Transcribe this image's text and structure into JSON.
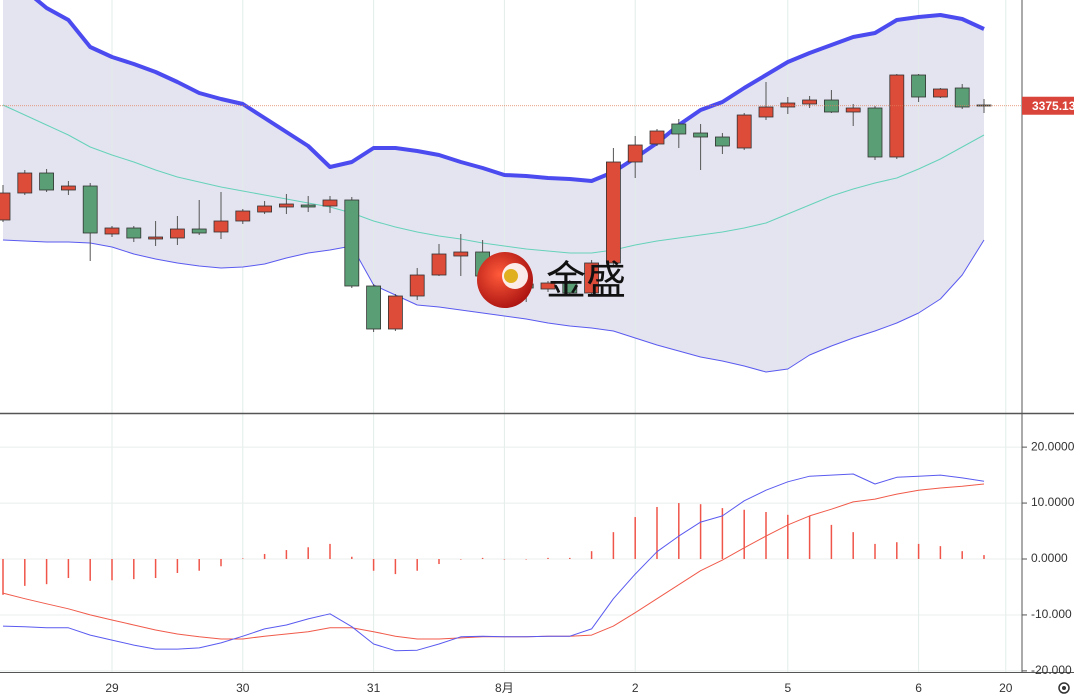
{
  "chart_data": [
    {
      "type": "candlestick",
      "categories": [
        null,
        null,
        null,
        null,
        null,
        "29",
        null,
        null,
        null,
        null,
        null,
        "30",
        null,
        null,
        null,
        null,
        null,
        "31",
        null,
        null,
        null,
        null,
        null,
        "8月",
        null,
        null,
        null,
        null,
        null,
        "2",
        null,
        null,
        null,
        null,
        null,
        null,
        "5",
        null,
        null,
        null,
        null,
        null,
        "6",
        null,
        null,
        null,
        "20"
      ],
      "open": [
        3318,
        3331.5,
        3341.5,
        3333,
        3335,
        3311,
        3314,
        3308.5,
        3309,
        3313.5,
        3312,
        3317.5,
        3322,
        3324.5,
        3325.5,
        3325,
        3328,
        3285,
        3263.5,
        3280,
        3290.5,
        3300,
        3302,
        3290,
        3286,
        3283.5,
        3286.5,
        3281.5,
        3296.5,
        3347,
        3356,
        3366,
        3361.5,
        3359.5,
        3354,
        3369.5,
        3374.5,
        3376,
        3378,
        3372,
        3374,
        3349.5,
        3390.5,
        3379.5,
        3384,
        3375.5,
        null
      ],
      "high": [
        3335.5,
        3343,
        3343.5,
        3337.5,
        3336.5,
        3315,
        3315,
        3317.5,
        3320,
        3328,
        3332,
        3323.5,
        3327.5,
        3331,
        3330,
        3330,
        3329.5,
        3286,
        3281,
        3294,
        3306,
        3311,
        3308,
        3293,
        3289,
        3287.5,
        3288,
        3298,
        3354,
        3360,
        3363.5,
        3368.5,
        3366,
        3361.5,
        3371.5,
        3387,
        3379.5,
        3380,
        3383,
        3376,
        3375,
        3391,
        3391,
        3384,
        3386,
        3378.5,
        null
      ],
      "low": [
        3317,
        3330.5,
        3332,
        3330.5,
        3297.5,
        3309.5,
        3307,
        3305,
        3305.5,
        3310.5,
        3308.5,
        3316,
        3321,
        3321,
        3322,
        3321.5,
        3284,
        3262,
        3262.5,
        3278,
        3290,
        3290,
        3288,
        3283,
        3277,
        3282,
        3280,
        3280.5,
        3295.5,
        3339,
        3355,
        3354,
        3343,
        3351,
        3353,
        3368,
        3371,
        3374,
        3371.5,
        3365,
        3348,
        3348.5,
        3377,
        3379,
        3373.5,
        3371.5,
        null
      ],
      "close": [
        3331.5,
        3341.5,
        3333,
        3335,
        3311.5,
        3314,
        3309,
        3309.5,
        3313.5,
        3311.5,
        3317.5,
        3322.5,
        3325,
        3326,
        3324.5,
        3328,
        3285,
        3263.5,
        3280,
        3290.5,
        3301,
        3302,
        3290,
        3286,
        3284,
        3286.5,
        3281.5,
        3296.5,
        3347,
        3355.5,
        3362.5,
        3361,
        3359.5,
        3355,
        3370.5,
        3374.5,
        3376.5,
        3378,
        3372,
        3374,
        3349.5,
        3390.5,
        3379.5,
        3383.5,
        3374.5,
        3375.13,
        null
      ],
      "upper": [
        3440.5,
        3433,
        3424,
        3418,
        3404.5,
        3399.5,
        3396,
        3392,
        3387,
        3381.5,
        3378.5,
        3376,
        3369,
        3362,
        3355,
        3344.5,
        3347,
        3354,
        3354,
        3352.5,
        3350.5,
        3347,
        3344,
        3340.5,
        3340,
        3339,
        3338.5,
        3337.5,
        3342,
        3349,
        3356.5,
        3365.5,
        3373,
        3377,
        3384,
        3390.5,
        3397,
        3401.5,
        3405.5,
        3409.5,
        3411.5,
        3418,
        3419.5,
        3420.5,
        3418.5,
        3413.5,
        null
      ],
      "middle": [
        3375.5,
        3370.5,
        3365.5,
        3360.5,
        3354.5,
        3350.5,
        3347,
        3343,
        3339.5,
        3337,
        3334.5,
        3332.5,
        3330.5,
        3328.5,
        3326.5,
        3324.5,
        3321.5,
        3317.5,
        3314.5,
        3312,
        3310,
        3308.5,
        3306.5,
        3305,
        3303.5,
        3302.5,
        3301.5,
        3301.5,
        3303,
        3305.5,
        3307.5,
        3309,
        3310.5,
        3312,
        3314,
        3316.5,
        3321,
        3325.5,
        3330,
        3333.5,
        3336.5,
        3339,
        3343.5,
        3348.5,
        3354.5,
        3360.5,
        null
      ],
      "lower": [
        3308,
        3307.5,
        3307,
        3307,
        3306.5,
        3304.5,
        3301,
        3298.5,
        3296.5,
        3295,
        3294,
        3294.5,
        3296,
        3299,
        3301.5,
        3303,
        3305,
        3285.5,
        3280.5,
        3275.5,
        3274.5,
        3273,
        3271.5,
        3270,
        3268.5,
        3266.5,
        3265,
        3264,
        3262.5,
        3259,
        3255.5,
        3252.5,
        3249.5,
        3247.5,
        3245,
        3242,
        3243.5,
        3250.5,
        3255,
        3259,
        3262.5,
        3266.5,
        3271.5,
        3278.5,
        3290.5,
        3308,
        null
      ],
      "colors": {
        "up": "#dd4b39",
        "down": "#5a9e75",
        "upper": "#4b4bf0",
        "middle": "#66d2b8",
        "lower": "#5a5af0",
        "band": "#e4e4f1"
      },
      "ylim": [
        3221.5,
        3428
      ],
      "last_price": 3375.13,
      "watermark": "金盛"
    },
    {
      "type": "macd",
      "histogram": [
        -6.4,
        -4.8,
        -4.5,
        -3.4,
        -3.9,
        -3.8,
        -3.6,
        -3.4,
        -2.5,
        -2.1,
        -1.3,
        0.1,
        0.9,
        1.6,
        2.1,
        2.7,
        0.4,
        -2.1,
        -2.7,
        -2.1,
        -0.9,
        -0.1,
        0.2,
        0,
        0,
        0.2,
        0.2,
        1.4,
        4.8,
        7.5,
        9.3,
        10.0,
        9.8,
        9.1,
        8.8,
        8.4,
        7.9,
        7.7,
        6.1,
        4.8,
        2.7,
        3.0,
        2.7,
        2.3,
        1.4,
        0.7,
        null
      ],
      "dif": [
        -12.0,
        -12.1,
        -12.3,
        -12.3,
        -13.6,
        -14.5,
        -15.4,
        -16.1,
        -16.1,
        -15.9,
        -15.0,
        -13.8,
        -12.5,
        -11.8,
        -10.7,
        -9.8,
        -12.1,
        -15.2,
        -16.4,
        -16.3,
        -15.2,
        -13.9,
        -13.8,
        -13.9,
        -13.9,
        -13.8,
        -13.8,
        -12.5,
        -7.1,
        -2.7,
        1.3,
        4.1,
        6.6,
        7.7,
        10.4,
        12.3,
        13.8,
        14.8,
        15.0,
        15.2,
        13.4,
        14.6,
        14.8,
        15.0,
        14.5,
        13.9,
        null
      ],
      "dea": [
        -6.1,
        -7.1,
        -8.0,
        -8.9,
        -10.0,
        -10.9,
        -11.8,
        -12.7,
        -13.4,
        -13.9,
        -14.3,
        -14.3,
        -13.8,
        -13.4,
        -13.0,
        -12.3,
        -12.3,
        -13.0,
        -13.8,
        -14.3,
        -14.3,
        -14.1,
        -13.9,
        -13.9,
        -13.9,
        -13.8,
        -13.8,
        -13.6,
        -12.0,
        -9.6,
        -7.1,
        -4.6,
        -2.1,
        -0.2,
        2.0,
        4.1,
        6.1,
        7.7,
        8.9,
        10.2,
        10.7,
        11.6,
        12.3,
        12.7,
        13.0,
        13.4,
        null
      ],
      "colors": {
        "histogram": "#f0554a",
        "dif": "#5a5af0",
        "dea": "#f05a4a"
      },
      "ylim": [
        -20.2,
        26.1
      ],
      "yticks": [
        {
          "value": 20,
          "label": "20.0000"
        },
        {
          "value": 10,
          "label": "10.0000"
        },
        {
          "value": 0,
          "label": "0.0000"
        },
        {
          "value": -10,
          "label": "-10.000"
        },
        {
          "value": -20,
          "label": "-20.000"
        }
      ],
      "grid": true
    }
  ]
}
